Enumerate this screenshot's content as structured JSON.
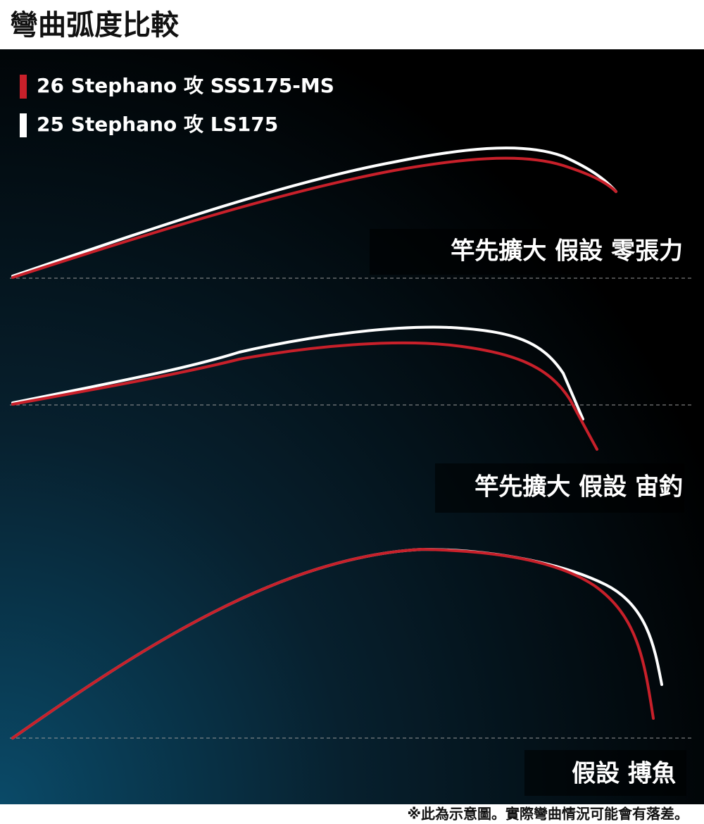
{
  "title": "彎曲弧度比較",
  "legend": [
    {
      "label": "26 Stephano 攻 SSS175-MS",
      "color": "#c8202a"
    },
    {
      "label": "25 Stephano 攻 LS175",
      "color": "#ffffff"
    }
  ],
  "panels": [
    {
      "label": "竿先擴大 假設 零張力"
    },
    {
      "label": "竿先擴大 假設 宙釣"
    },
    {
      "label": "假設 搏魚"
    }
  ],
  "footnote": "※此為示意圖。實際彎曲情況可能會有落差。"
}
